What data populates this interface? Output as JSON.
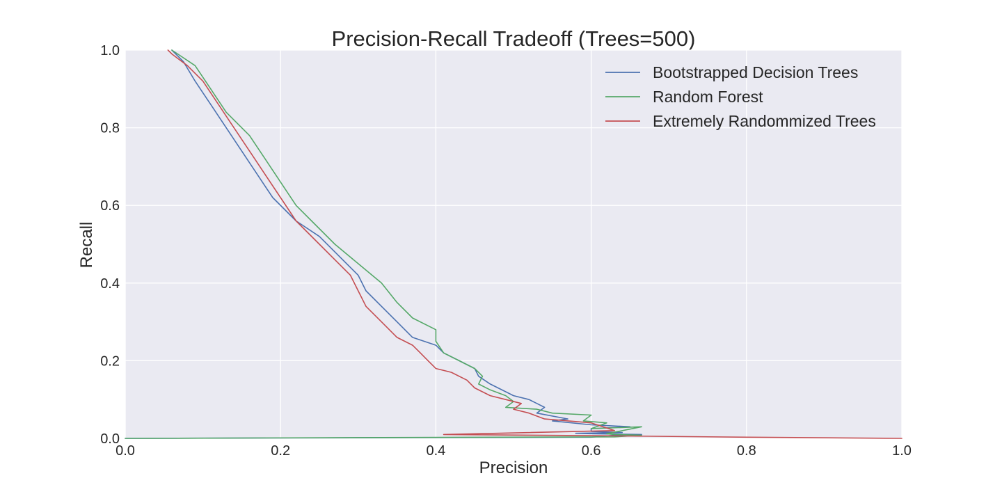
{
  "chart_data": {
    "type": "line",
    "title": "Precision-Recall Tradeoff (Trees=500)",
    "xlabel": "Precision",
    "ylabel": "Recall",
    "xlim": [
      0.0,
      1.0
    ],
    "ylim": [
      0.0,
      1.0
    ],
    "xticks": [
      "0.0",
      "0.2",
      "0.4",
      "0.6",
      "0.8",
      "1.0"
    ],
    "yticks": [
      "0.0",
      "0.2",
      "0.4",
      "0.6",
      "0.8",
      "1.0"
    ],
    "grid": true,
    "legend_position": "top-right",
    "background_color": "#EAEAF2",
    "series": [
      {
        "name": "Bootstrapped Decision Trees",
        "color": "#4C72B0",
        "points": [
          [
            0.0,
            0.0
          ],
          [
            0.6,
            0.003
          ],
          [
            0.63,
            0.008
          ],
          [
            0.665,
            0.01
          ],
          [
            0.6,
            0.012
          ],
          [
            0.58,
            0.013
          ],
          [
            0.64,
            0.015
          ],
          [
            0.6,
            0.018
          ],
          [
            0.6,
            0.025
          ],
          [
            0.65,
            0.03
          ],
          [
            0.6,
            0.035
          ],
          [
            0.55,
            0.045
          ],
          [
            0.57,
            0.05
          ],
          [
            0.53,
            0.065
          ],
          [
            0.54,
            0.08
          ],
          [
            0.53,
            0.09
          ],
          [
            0.52,
            0.1
          ],
          [
            0.5,
            0.11
          ],
          [
            0.49,
            0.12
          ],
          [
            0.47,
            0.14
          ],
          [
            0.455,
            0.16
          ],
          [
            0.45,
            0.18
          ],
          [
            0.43,
            0.2
          ],
          [
            0.41,
            0.22
          ],
          [
            0.4,
            0.24
          ],
          [
            0.37,
            0.26
          ],
          [
            0.36,
            0.28
          ],
          [
            0.35,
            0.3
          ],
          [
            0.33,
            0.34
          ],
          [
            0.31,
            0.38
          ],
          [
            0.3,
            0.42
          ],
          [
            0.275,
            0.47
          ],
          [
            0.25,
            0.52
          ],
          [
            0.22,
            0.56
          ],
          [
            0.19,
            0.62
          ],
          [
            0.17,
            0.68
          ],
          [
            0.15,
            0.74
          ],
          [
            0.13,
            0.8
          ],
          [
            0.11,
            0.86
          ],
          [
            0.09,
            0.92
          ],
          [
            0.075,
            0.97
          ],
          [
            0.06,
            1.0
          ]
        ]
      },
      {
        "name": "Random Forest",
        "color": "#55A868",
        "points": [
          [
            0.0,
            0.0
          ],
          [
            0.63,
            0.004
          ],
          [
            0.665,
            0.008
          ],
          [
            0.63,
            0.01
          ],
          [
            0.62,
            0.012
          ],
          [
            0.665,
            0.03
          ],
          [
            0.6,
            0.025
          ],
          [
            0.62,
            0.04
          ],
          [
            0.59,
            0.045
          ],
          [
            0.6,
            0.06
          ],
          [
            0.55,
            0.065
          ],
          [
            0.53,
            0.075
          ],
          [
            0.49,
            0.08
          ],
          [
            0.5,
            0.095
          ],
          [
            0.49,
            0.11
          ],
          [
            0.47,
            0.125
          ],
          [
            0.455,
            0.14
          ],
          [
            0.46,
            0.16
          ],
          [
            0.45,
            0.18
          ],
          [
            0.43,
            0.2
          ],
          [
            0.41,
            0.22
          ],
          [
            0.4,
            0.25
          ],
          [
            0.4,
            0.28
          ],
          [
            0.37,
            0.31
          ],
          [
            0.35,
            0.35
          ],
          [
            0.33,
            0.4
          ],
          [
            0.3,
            0.45
          ],
          [
            0.27,
            0.5
          ],
          [
            0.24,
            0.56
          ],
          [
            0.22,
            0.6
          ],
          [
            0.2,
            0.66
          ],
          [
            0.18,
            0.72
          ],
          [
            0.16,
            0.78
          ],
          [
            0.13,
            0.84
          ],
          [
            0.11,
            0.9
          ],
          [
            0.09,
            0.96
          ],
          [
            0.06,
            1.0
          ]
        ]
      },
      {
        "name": "Extremely Randommized Trees",
        "color": "#C44E52",
        "points": [
          [
            1.0,
            0.0
          ],
          [
            0.8,
            0.003
          ],
          [
            0.6,
            0.007
          ],
          [
            0.41,
            0.01
          ],
          [
            0.63,
            0.02
          ],
          [
            0.6,
            0.04
          ],
          [
            0.54,
            0.05
          ],
          [
            0.52,
            0.065
          ],
          [
            0.5,
            0.075
          ],
          [
            0.51,
            0.09
          ],
          [
            0.49,
            0.1
          ],
          [
            0.47,
            0.11
          ],
          [
            0.45,
            0.13
          ],
          [
            0.44,
            0.15
          ],
          [
            0.42,
            0.17
          ],
          [
            0.4,
            0.18
          ],
          [
            0.39,
            0.2
          ],
          [
            0.38,
            0.22
          ],
          [
            0.37,
            0.24
          ],
          [
            0.35,
            0.26
          ],
          [
            0.33,
            0.3
          ],
          [
            0.31,
            0.34
          ],
          [
            0.3,
            0.38
          ],
          [
            0.29,
            0.42
          ],
          [
            0.27,
            0.46
          ],
          [
            0.25,
            0.5
          ],
          [
            0.22,
            0.56
          ],
          [
            0.2,
            0.62
          ],
          [
            0.18,
            0.68
          ],
          [
            0.16,
            0.74
          ],
          [
            0.14,
            0.8
          ],
          [
            0.12,
            0.86
          ],
          [
            0.1,
            0.92
          ],
          [
            0.08,
            0.96
          ],
          [
            0.06,
            0.99
          ],
          [
            0.055,
            1.0
          ]
        ]
      }
    ]
  }
}
